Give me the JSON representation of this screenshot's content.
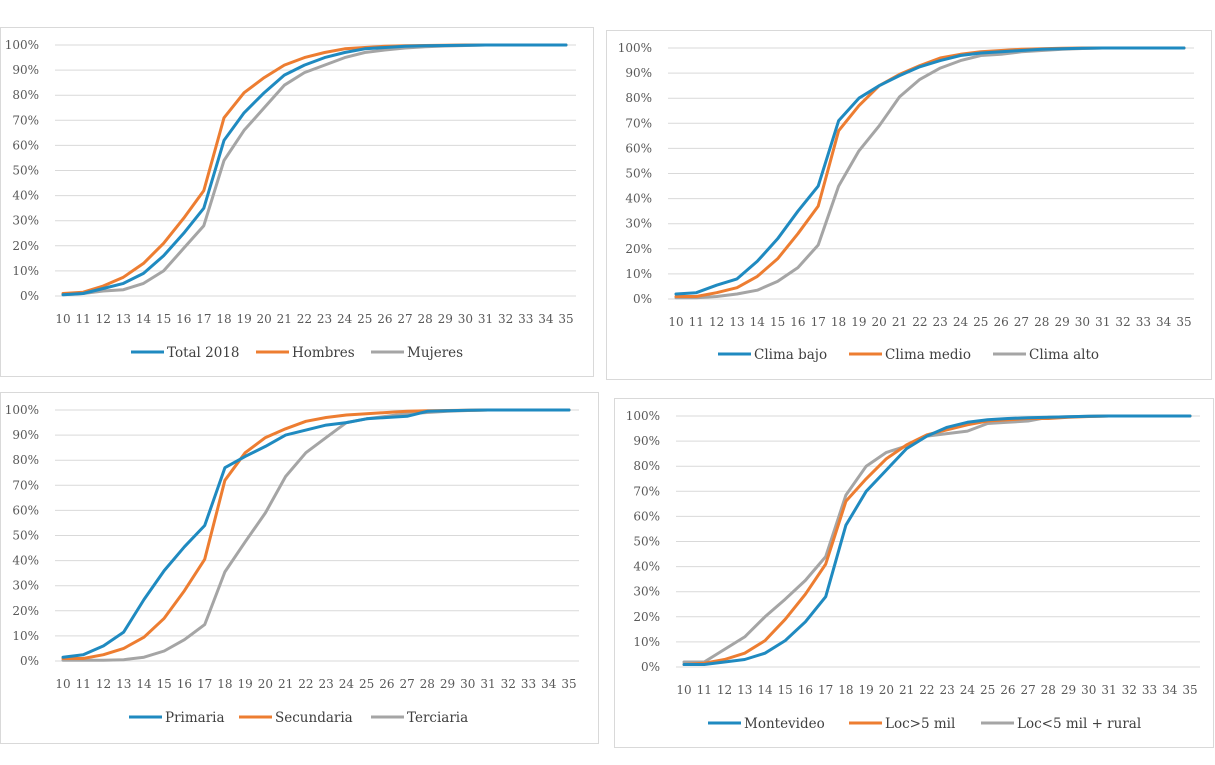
{
  "colors": {
    "blue": "#1f8ac0",
    "orange": "#ed7d31",
    "gray": "#a5a5a5",
    "grid": "#d9d9d9",
    "text": "#595959"
  },
  "chart_data": [
    {
      "type": "line",
      "title": "",
      "xlabel": "",
      "ylabel": "",
      "ylim": [
        0,
        100
      ],
      "grid": true,
      "legend": "bottom",
      "x": [
        "10",
        "11",
        "12",
        "13",
        "14",
        "15",
        "16",
        "17",
        "18",
        "19",
        "20",
        "21",
        "22",
        "23",
        "24",
        "25",
        "26",
        "27",
        "28",
        "29",
        "30",
        "31",
        "32",
        "33",
        "34",
        "35"
      ],
      "y_ticks": [
        "0%",
        "10%",
        "20%",
        "30%",
        "40%",
        "50%",
        "60%",
        "70%",
        "80%",
        "90%",
        "100%"
      ],
      "series": [
        {
          "name": "Total 2018",
          "color": "#1f8ac0",
          "values": [
            0.5,
            1,
            3,
            5,
            9,
            16,
            25,
            35,
            62,
            73,
            81,
            88,
            92,
            95,
            97,
            98.5,
            99,
            99.5,
            99.7,
            99.8,
            99.9,
            100,
            100,
            100,
            100,
            100
          ]
        },
        {
          "name": "Hombres",
          "color": "#ed7d31",
          "values": [
            1,
            1.5,
            4,
            7.5,
            13,
            21,
            31,
            42,
            71,
            81,
            87,
            92,
            95,
            97,
            98.5,
            99,
            99.5,
            99.7,
            99.8,
            99.9,
            100,
            100,
            100,
            100,
            100,
            100
          ]
        },
        {
          "name": "Mujeres",
          "color": "#a5a5a5",
          "values": [
            0.5,
            1,
            2,
            2.5,
            5,
            10,
            19,
            28,
            54,
            66,
            75,
            84,
            89,
            92,
            95,
            97,
            98,
            98.8,
            99.3,
            99.6,
            99.8,
            100,
            100,
            100,
            100,
            100
          ]
        }
      ]
    },
    {
      "type": "line",
      "title": "",
      "xlabel": "",
      "ylabel": "",
      "ylim": [
        0,
        100
      ],
      "grid": true,
      "legend": "bottom",
      "x": [
        "10",
        "11",
        "12",
        "13",
        "14",
        "15",
        "16",
        "17",
        "18",
        "19",
        "20",
        "21",
        "22",
        "23",
        "24",
        "25",
        "26",
        "27",
        "28",
        "29",
        "30",
        "31",
        "32",
        "33",
        "34",
        "35"
      ],
      "y_ticks": [
        "0%",
        "10%",
        "20%",
        "30%",
        "40%",
        "50%",
        "60%",
        "70%",
        "80%",
        "90%",
        "100%"
      ],
      "series": [
        {
          "name": "Clima bajo",
          "color": "#1f8ac0",
          "values": [
            2,
            2.5,
            5.5,
            8,
            15,
            24,
            35,
            45,
            71,
            80,
            85,
            89,
            92.5,
            95,
            97,
            98,
            98.5,
            99,
            99.5,
            99.7,
            99.9,
            100,
            100,
            100,
            100,
            100
          ]
        },
        {
          "name": "Clima medio",
          "color": "#ed7d31",
          "values": [
            1,
            1,
            2.5,
            4.5,
            9,
            16,
            26,
            37,
            67,
            77,
            85,
            89.5,
            93,
            96,
            97.5,
            98.5,
            99,
            99.5,
            99.7,
            99.9,
            100,
            100,
            100,
            100,
            100,
            100
          ]
        },
        {
          "name": "Clima alto",
          "color": "#a5a5a5",
          "values": [
            0.5,
            0.5,
            1,
            2,
            3.5,
            7,
            12.5,
            21.5,
            45,
            59,
            69,
            80.5,
            87.5,
            92,
            95,
            97,
            97.5,
            98.5,
            99,
            99.5,
            99.8,
            100,
            100,
            100,
            100,
            100
          ]
        }
      ]
    },
    {
      "type": "line",
      "title": "",
      "xlabel": "",
      "ylabel": "",
      "ylim": [
        0,
        100
      ],
      "grid": true,
      "legend": "bottom",
      "x": [
        "10",
        "11",
        "12",
        "13",
        "14",
        "15",
        "16",
        "17",
        "18",
        "19",
        "20",
        "21",
        "22",
        "23",
        "24",
        "25",
        "26",
        "27",
        "28",
        "29",
        "30",
        "31",
        "32",
        "33",
        "34",
        "35"
      ],
      "y_ticks": [
        "0%",
        "10%",
        "20%",
        "30%",
        "40%",
        "50%",
        "60%",
        "70%",
        "80%",
        "90%",
        "100%"
      ],
      "series": [
        {
          "name": "Primaria",
          "color": "#1f8ac0",
          "values": [
            1.5,
            2.5,
            6,
            11.5,
            24.5,
            36,
            45.5,
            54,
            77,
            81.5,
            85.5,
            90,
            92,
            94,
            95,
            96.5,
            97,
            97.5,
            99.5,
            99.7,
            99.9,
            100,
            100,
            100,
            100,
            100
          ]
        },
        {
          "name": "Secundaria",
          "color": "#ed7d31",
          "values": [
            1,
            1,
            2.5,
            5,
            9.5,
            17,
            28,
            40.5,
            72,
            83,
            89,
            92.5,
            95.5,
            97,
            98,
            98.5,
            99,
            99.5,
            99.7,
            99.8,
            99.9,
            100,
            100,
            100,
            100,
            100
          ]
        },
        {
          "name": "Terciaria",
          "color": "#a5a5a5",
          "values": [
            0.3,
            0.3,
            0.3,
            0.5,
            1.5,
            4,
            8.5,
            14.5,
            35.5,
            47.5,
            59,
            73.5,
            83,
            89,
            95,
            96.5,
            97.5,
            98.5,
            99,
            99.5,
            99.8,
            100,
            100,
            100,
            100,
            100
          ]
        }
      ]
    },
    {
      "type": "line",
      "title": "",
      "xlabel": "",
      "ylabel": "",
      "ylim": [
        0,
        100
      ],
      "grid": true,
      "legend": "bottom",
      "x": [
        "10",
        "11",
        "12",
        "13",
        "14",
        "15",
        "16",
        "17",
        "18",
        "19",
        "20",
        "21",
        "22",
        "23",
        "24",
        "25",
        "26",
        "27",
        "28",
        "29",
        "30",
        "31",
        "32",
        "33",
        "34",
        "35"
      ],
      "y_ticks": [
        "0%",
        "10%",
        "20%",
        "30%",
        "40%",
        "50%",
        "60%",
        "70%",
        "80%",
        "90%",
        "100%"
      ],
      "series": [
        {
          "name": "Montevideo",
          "color": "#1f8ac0",
          "values": [
            1,
            1,
            2,
            3,
            5.5,
            10.5,
            18,
            28,
            56.5,
            70,
            78.5,
            87,
            92,
            95.5,
            97.5,
            98.5,
            99,
            99.3,
            99.5,
            99.7,
            99.9,
            100,
            100,
            100,
            100,
            100
          ]
        },
        {
          "name": "Loc>5 mil",
          "color": "#ed7d31",
          "values": [
            1,
            1.5,
            3,
            5.5,
            10.5,
            19,
            29,
            41,
            66,
            75,
            83,
            88.5,
            92.5,
            94.5,
            96.5,
            98,
            98.5,
            99,
            99,
            99.5,
            99.8,
            100,
            100,
            100,
            100,
            100
          ]
        },
        {
          "name": "Loc<5 mil + rural",
          "color": "#a5a5a5",
          "values": [
            2,
            2,
            7,
            12,
            20,
            27,
            34.5,
            44,
            68.5,
            80,
            85.5,
            88,
            92,
            93,
            94,
            97,
            97.5,
            98,
            99.5,
            99.7,
            99.9,
            100,
            100,
            100,
            100,
            100
          ]
        }
      ]
    }
  ]
}
